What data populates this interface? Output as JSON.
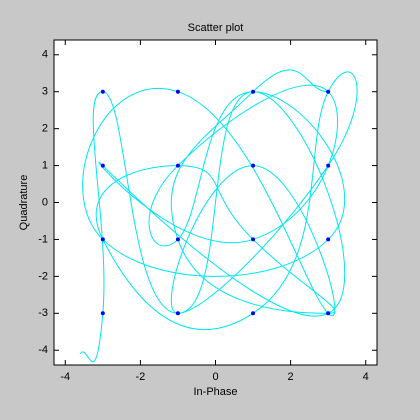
{
  "chart_data": {
    "type": "scatter",
    "title": "Scatter plot",
    "x_label": "In-Phase",
    "y_label": "Quadrature",
    "xlim": [
      -4.3,
      4.3
    ],
    "ylim": [
      -4.4,
      4.4
    ],
    "xticks": [
      -4,
      -2,
      0,
      2,
      4
    ],
    "yticks": [
      -4,
      -3,
      -2,
      -1,
      0,
      1,
      2,
      3,
      4
    ],
    "points": {
      "color": "#0000ff",
      "x": [
        -3,
        -3,
        -3,
        -3,
        -1,
        -1,
        -1,
        -1,
        1,
        1,
        1,
        1,
        3,
        3,
        3,
        3
      ],
      "y": [
        -3,
        -1,
        1,
        3,
        -3,
        -1,
        1,
        3,
        -3,
        -1,
        1,
        3,
        -3,
        -1,
        1,
        3
      ]
    },
    "trajectory": {
      "color": "#00e5ee",
      "x": [
        -3.6,
        -3,
        -3,
        -1,
        1,
        3,
        -3,
        1,
        3,
        -1,
        -1,
        1,
        3,
        -3,
        -1,
        3,
        1,
        -1,
        3,
        3,
        1,
        -3,
        -1,
        1,
        3,
        -1,
        1,
        3
      ],
      "y": [
        -4.1,
        -3,
        3,
        -3,
        3,
        -3,
        1,
        -1,
        3,
        1,
        -1,
        3,
        -1,
        -1,
        3,
        -3,
        1,
        -3,
        1,
        3,
        -3,
        -1,
        1,
        -1,
        -3,
        -1,
        3,
        3
      ]
    }
  }
}
